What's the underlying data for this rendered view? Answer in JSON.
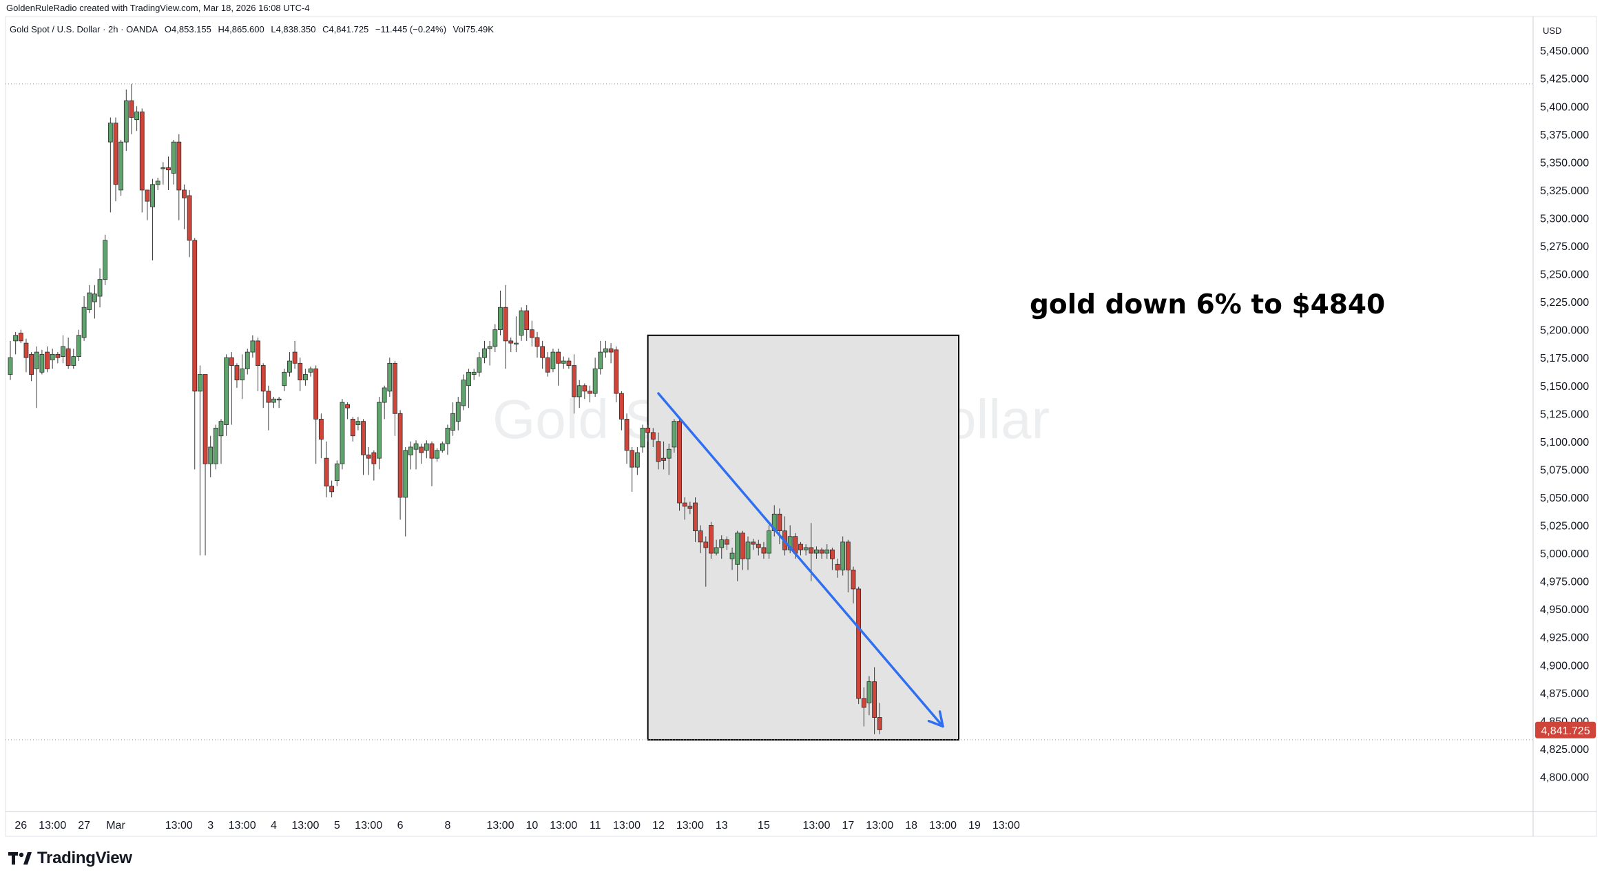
{
  "header": {
    "credit": "GoldenRuleRadio created with TradingView.com, Mar 18, 2026 16:08 UTC-4",
    "symbol": "Gold Spot / U.S. Dollar · 2h · OANDA",
    "open": "O4,853.155",
    "high": "H4,865.600",
    "low": "L4,838.350",
    "close": "C4,841.725",
    "change": "−11.445 (−0.24%)",
    "volume": "Vol75.49K"
  },
  "watermark": "Gold Spot / U.S. Dollar",
  "currency": "USD",
  "annotation": "gold down 6% to $4840",
  "footer": {
    "brand": "TradingView",
    "logo_icon": "tradingview-logo-icon"
  },
  "chart_data": {
    "type": "candlestick",
    "interval": "2h",
    "ylim": [
      4775,
      5475
    ],
    "y_ticks": [
      5450,
      5425,
      5400,
      5375,
      5350,
      5325,
      5300,
      5275,
      5250,
      5225,
      5200,
      5175,
      5150,
      5125,
      5100,
      5075,
      5050,
      5025,
      5000,
      4975,
      4950,
      4925,
      4900,
      4875,
      4850,
      4825,
      4800
    ],
    "y_tick_labels": [
      "5,450.000",
      "5,425.000",
      "5,400.000",
      "5,375.000",
      "5,350.000",
      "5,325.000",
      "5,300.000",
      "5,275.000",
      "5,250.000",
      "5,225.000",
      "5,200.000",
      "5,175.000",
      "5,150.000",
      "5,125.000",
      "5,100.000",
      "5,075.000",
      "5,050.000",
      "5,025.000",
      "5,000.000",
      "4,975.000",
      "4,950.000",
      "4,925.000",
      "4,900.000",
      "4,875.000",
      "4,850.000",
      "4,825.000",
      "4,800.000"
    ],
    "x_ticks": [
      {
        "label": "26",
        "pos": 2
      },
      {
        "label": "13:00",
        "pos": 8
      },
      {
        "label": "27",
        "pos": 14
      },
      {
        "label": "Mar",
        "pos": 20
      },
      {
        "label": "13:00",
        "pos": 32
      },
      {
        "label": "3",
        "pos": 38
      },
      {
        "label": "13:00",
        "pos": 44
      },
      {
        "label": "4",
        "pos": 50
      },
      {
        "label": "13:00",
        "pos": 56
      },
      {
        "label": "5",
        "pos": 62
      },
      {
        "label": "13:00",
        "pos": 68
      },
      {
        "label": "6",
        "pos": 74
      },
      {
        "label": "8",
        "pos": 83
      },
      {
        "label": "13:00",
        "pos": 93
      },
      {
        "label": "10",
        "pos": 99
      },
      {
        "label": "13:00",
        "pos": 105
      },
      {
        "label": "11",
        "pos": 111
      },
      {
        "label": "13:00",
        "pos": 117
      },
      {
        "label": "12",
        "pos": 123
      },
      {
        "label": "13:00",
        "pos": 129
      },
      {
        "label": "13",
        "pos": 135
      },
      {
        "label": "15",
        "pos": 143
      },
      {
        "label": "13:00",
        "pos": 153
      },
      {
        "label": "17",
        "pos": 159
      },
      {
        "label": "13:00",
        "pos": 165
      },
      {
        "label": "18",
        "pos": 171
      },
      {
        "label": "13:00",
        "pos": 177
      },
      {
        "label": "19",
        "pos": 183
      },
      {
        "label": "13:00",
        "pos": 189
      }
    ],
    "reference_lines": [
      5420,
      4833
    ],
    "last_price": 4841.725,
    "last_price_label": "4,841.725",
    "arrow": {
      "from": [
        123,
        5143
      ],
      "to": [
        177,
        4845
      ]
    },
    "highlight_box": {
      "x": [
        121,
        180
      ],
      "y": [
        4833,
        5195
      ]
    },
    "colors": {
      "up": "#5fa46d",
      "down": "#d0453a",
      "arrow": "#2f6ff0",
      "box": "#e3e3e3",
      "price_tag": "#d0453a"
    },
    "candles": [
      [
        5160,
        5175,
        5155,
        5190,
        5195
      ],
      [
        5190,
        5195,
        5178,
        5198,
        5199
      ],
      [
        5197,
        5190,
        5188,
        5200,
        5203
      ],
      [
        5188,
        5175,
        5162,
        5192,
        5194
      ],
      [
        5178,
        5160,
        5154,
        5180,
        5182
      ],
      [
        5165,
        5180,
        5130,
        5185,
        5188
      ],
      [
        5162,
        5178,
        5160,
        5182,
        5185
      ],
      [
        5180,
        5165,
        5162,
        5185,
        5187
      ],
      [
        5173,
        5178,
        5165,
        5183,
        5185
      ],
      [
        5178,
        5175,
        5170,
        5180,
        5182
      ],
      [
        5176,
        5185,
        5170,
        5195,
        5200
      ],
      [
        5183,
        5168,
        5165,
        5193,
        5195
      ],
      [
        5168,
        5176,
        5165,
        5183,
        5185
      ],
      [
        5176,
        5195,
        5172,
        5200,
        5205
      ],
      [
        5193,
        5220,
        5190,
        5230,
        5230
      ],
      [
        5218,
        5233,
        5215,
        5240,
        5243
      ],
      [
        5225,
        5232,
        5210,
        5240,
        5245
      ],
      [
        5230,
        5245,
        5220,
        5255,
        5258
      ],
      [
        5245,
        5280,
        5240,
        5285,
        5288
      ],
      [
        5368,
        5385,
        5305,
        5390,
        5392
      ],
      [
        5385,
        5330,
        5315,
        5390,
        5392
      ],
      [
        5325,
        5368,
        5320,
        5370,
        5372
      ],
      [
        5368,
        5405,
        5360,
        5415,
        5420
      ],
      [
        5405,
        5390,
        5375,
        5420,
        5420
      ],
      [
        5388,
        5395,
        5378,
        5400,
        5402
      ],
      [
        5395,
        5325,
        5305,
        5398,
        5402
      ],
      [
        5325,
        5315,
        5298,
        5320,
        5322
      ],
      [
        5310,
        5330,
        5262,
        5335,
        5338
      ],
      [
        5330,
        5333,
        5325,
        5336,
        5338
      ],
      [
        5345,
        5345,
        5330,
        5350,
        5352
      ],
      [
        5345,
        5343,
        5325,
        5355,
        5358
      ],
      [
        5340,
        5368,
        5330,
        5370,
        5372
      ],
      [
        5368,
        5325,
        5298,
        5375,
        5378
      ],
      [
        5325,
        5318,
        5290,
        5330,
        5332
      ],
      [
        5320,
        5280,
        5265,
        5325,
        5328
      ],
      [
        5280,
        5145,
        5075,
        5282,
        5285
      ],
      [
        5145,
        5160,
        4998,
        5168,
        5172
      ],
      [
        5160,
        5080,
        4998,
        5160,
        5163
      ],
      [
        5080,
        5095,
        5068,
        5105,
        5110
      ],
      [
        5080,
        5112,
        5075,
        5115,
        5118
      ],
      [
        5105,
        5118,
        5080,
        5120,
        5123
      ],
      [
        5115,
        5175,
        5105,
        5178,
        5180
      ],
      [
        5175,
        5168,
        5115,
        5180,
        5182
      ],
      [
        5168,
        5155,
        5148,
        5170,
        5172
      ],
      [
        5155,
        5165,
        5138,
        5178,
        5180
      ],
      [
        5165,
        5180,
        5160,
        5183,
        5185
      ],
      [
        5180,
        5190,
        5175,
        5195,
        5198
      ],
      [
        5190,
        5168,
        5145,
        5193,
        5196
      ],
      [
        5168,
        5145,
        5130,
        5170,
        5172
      ],
      [
        5145,
        5135,
        5110,
        5150,
        5152
      ],
      [
        5135,
        5138,
        5130,
        5140,
        5142
      ],
      [
        5138,
        5138,
        5130,
        5140,
        5142
      ],
      [
        5150,
        5162,
        5145,
        5165,
        5168
      ],
      [
        5162,
        5172,
        5158,
        5180,
        5182
      ],
      [
        5180,
        5170,
        5165,
        5190,
        5192
      ],
      [
        5170,
        5155,
        5145,
        5175,
        5177
      ],
      [
        5155,
        5160,
        5150,
        5165,
        5167
      ],
      [
        5162,
        5165,
        5158,
        5167,
        5169
      ],
      [
        5165,
        5120,
        5080,
        5168,
        5170
      ],
      [
        5120,
        5102,
        5085,
        5125,
        5127
      ],
      [
        5085,
        5060,
        5050,
        5100,
        5102
      ],
      [
        5060,
        5055,
        5050,
        5065,
        5067
      ],
      [
        5065,
        5080,
        5060,
        5083,
        5085
      ],
      [
        5080,
        5135,
        5075,
        5138,
        5140
      ],
      [
        5133,
        5130,
        5120,
        5135,
        5137
      ],
      [
        5120,
        5105,
        5100,
        5122,
        5124
      ],
      [
        5115,
        5118,
        5110,
        5122,
        5124
      ],
      [
        5118,
        5088,
        5070,
        5120,
        5122
      ],
      [
        5088,
        5085,
        5070,
        5095,
        5097
      ],
      [
        5090,
        5080,
        5065,
        5092,
        5094
      ],
      [
        5085,
        5135,
        5075,
        5140,
        5142
      ],
      [
        5135,
        5148,
        5120,
        5150,
        5152
      ],
      [
        5145,
        5170,
        5140,
        5175,
        5177
      ],
      [
        5170,
        5125,
        5105,
        5172,
        5174
      ],
      [
        5125,
        5050,
        5030,
        5128,
        5130
      ],
      [
        5050,
        5092,
        5015,
        5095,
        5097
      ],
      [
        5088,
        5095,
        5075,
        5100,
        5102
      ],
      [
        5093,
        5098,
        5075,
        5101,
        5103
      ],
      [
        5095,
        5090,
        5080,
        5098,
        5100
      ],
      [
        5092,
        5098,
        5085,
        5101,
        5103
      ],
      [
        5098,
        5085,
        5060,
        5100,
        5102
      ],
      [
        5085,
        5092,
        5082,
        5094,
        5096
      ],
      [
        5092,
        5098,
        5090,
        5100,
        5102
      ],
      [
        5098,
        5112,
        5088,
        5115,
        5117
      ],
      [
        5110,
        5125,
        5105,
        5135,
        5137
      ],
      [
        5118,
        5135,
        5110,
        5140,
        5142
      ],
      [
        5132,
        5155,
        5128,
        5160,
        5162
      ],
      [
        5150,
        5162,
        5130,
        5165,
        5167
      ],
      [
        5160,
        5162,
        5155,
        5165,
        5167
      ],
      [
        5162,
        5175,
        5158,
        5180,
        5183
      ],
      [
        5175,
        5183,
        5170,
        5190,
        5193
      ],
      [
        5183,
        5185,
        5168,
        5190,
        5192
      ],
      [
        5185,
        5200,
        5180,
        5205,
        5207
      ],
      [
        5200,
        5220,
        5195,
        5235,
        5237
      ],
      [
        5220,
        5190,
        5165,
        5240,
        5242
      ],
      [
        5190,
        5188,
        5180,
        5193,
        5195
      ],
      [
        5188,
        5188,
        5180,
        5212,
        5214
      ],
      [
        5195,
        5217,
        5190,
        5220,
        5222
      ],
      [
        5217,
        5200,
        5190,
        5222,
        5224
      ],
      [
        5200,
        5193,
        5185,
        5208,
        5210
      ],
      [
        5193,
        5185,
        5175,
        5198,
        5200
      ],
      [
        5185,
        5175,
        5165,
        5190,
        5192
      ],
      [
        5175,
        5162,
        5158,
        5180,
        5182
      ],
      [
        5165,
        5180,
        5162,
        5183,
        5185
      ],
      [
        5180,
        5170,
        5150,
        5183,
        5185
      ],
      [
        5170,
        5172,
        5165,
        5176,
        5178
      ],
      [
        5172,
        5168,
        5165,
        5175,
        5177
      ],
      [
        5168,
        5140,
        5125,
        5178,
        5180
      ],
      [
        5140,
        5150,
        5130,
        5155,
        5157
      ],
      [
        5150,
        5145,
        5138,
        5152,
        5154
      ],
      [
        5145,
        5143,
        5135,
        5150,
        5152
      ],
      [
        5143,
        5165,
        5140,
        5175,
        5177
      ],
      [
        5165,
        5180,
        5160,
        5190,
        5193
      ],
      [
        5180,
        5183,
        5175,
        5190,
        5193
      ],
      [
        5183,
        5180,
        5170,
        5188,
        5190
      ],
      [
        5182,
        5143,
        5135,
        5185,
        5187
      ],
      [
        5143,
        5120,
        5110,
        5145,
        5147
      ],
      [
        5120,
        5092,
        5080,
        5125,
        5127
      ],
      [
        5092,
        5077,
        5055,
        5095,
        5097
      ],
      [
        5077,
        5090,
        5070,
        5095,
        5097
      ],
      [
        5095,
        5112,
        5090,
        5115,
        5117
      ],
      [
        5112,
        5108,
        5100,
        5115,
        5117
      ],
      [
        5108,
        5102,
        5095,
        5112,
        5114
      ],
      [
        5100,
        5082,
        5075,
        5108,
        5110
      ],
      [
        5085,
        5083,
        5075,
        5100,
        5102
      ],
      [
        5085,
        5093,
        5070,
        5098,
        5100
      ],
      [
        5095,
        5118,
        5090,
        5120,
        5122
      ],
      [
        5118,
        5045,
        5038,
        5120,
        5122
      ],
      [
        5045,
        5042,
        5030,
        5050,
        5052
      ],
      [
        5042,
        5040,
        5035,
        5046,
        5048
      ],
      [
        5045,
        5020,
        5010,
        5050,
        5052
      ],
      [
        5020,
        5010,
        5000,
        5025,
        5027
      ],
      [
        5010,
        5005,
        4970,
        5015,
        5017
      ],
      [
        5025,
        5000,
        4995,
        5028,
        5030
      ],
      [
        5000,
        5005,
        4998,
        5012,
        5014
      ],
      [
        5005,
        5012,
        4995,
        5016,
        5018
      ],
      [
        5012,
        5008,
        5003,
        5015,
        5017
      ],
      [
        4995,
        5000,
        4985,
        5005,
        5007
      ],
      [
        4990,
        5018,
        4975,
        5020,
        5022
      ],
      [
        5018,
        4995,
        4985,
        5020,
        5022
      ],
      [
        4995,
        5010,
        4985,
        5015,
        5017
      ],
      [
        5010,
        5008,
        5003,
        5013,
        5015
      ],
      [
        5008,
        5005,
        4998,
        5012,
        5014
      ],
      [
        5005,
        5000,
        4995,
        5010,
        5012
      ],
      [
        5000,
        5020,
        4995,
        5025,
        5027
      ],
      [
        5020,
        5035,
        5015,
        5043,
        5045
      ],
      [
        5035,
        5020,
        5008,
        5040,
        5042
      ],
      [
        5020,
        5003,
        4998,
        5033,
        5035
      ],
      [
        5003,
        5015,
        5000,
        5025,
        5027
      ],
      [
        5015,
        5000,
        4995,
        5018,
        5020
      ],
      [
        5008,
        5003,
        4998,
        5010,
        5012
      ],
      [
        5003,
        5005,
        4998,
        5008,
        5010
      ],
      [
        5005,
        5000,
        4975,
        5027,
        5029
      ],
      [
        5000,
        5003,
        4995,
        5006,
        5008
      ],
      [
        5003,
        5000,
        4995,
        5005,
        5007
      ],
      [
        5000,
        5003,
        4995,
        5008,
        5010
      ],
      [
        5003,
        4995,
        4985,
        5005,
        5007
      ],
      [
        4990,
        4985,
        4978,
        4995,
        4997
      ],
      [
        4985,
        5010,
        4980,
        5015,
        5017
      ],
      [
        5010,
        4985,
        4965,
        5012,
        5014
      ],
      [
        4985,
        4968,
        4955,
        4988,
        4990
      ],
      [
        4968,
        4870,
        4865,
        4970,
        4972
      ],
      [
        4870,
        4862,
        4845,
        4880,
        4882
      ],
      [
        4866,
        4885,
        4855,
        4890,
        4892
      ],
      [
        4885,
        4853,
        4838,
        4898,
        4900
      ],
      [
        4853,
        4842,
        4838,
        4866,
        4868
      ]
    ]
  }
}
